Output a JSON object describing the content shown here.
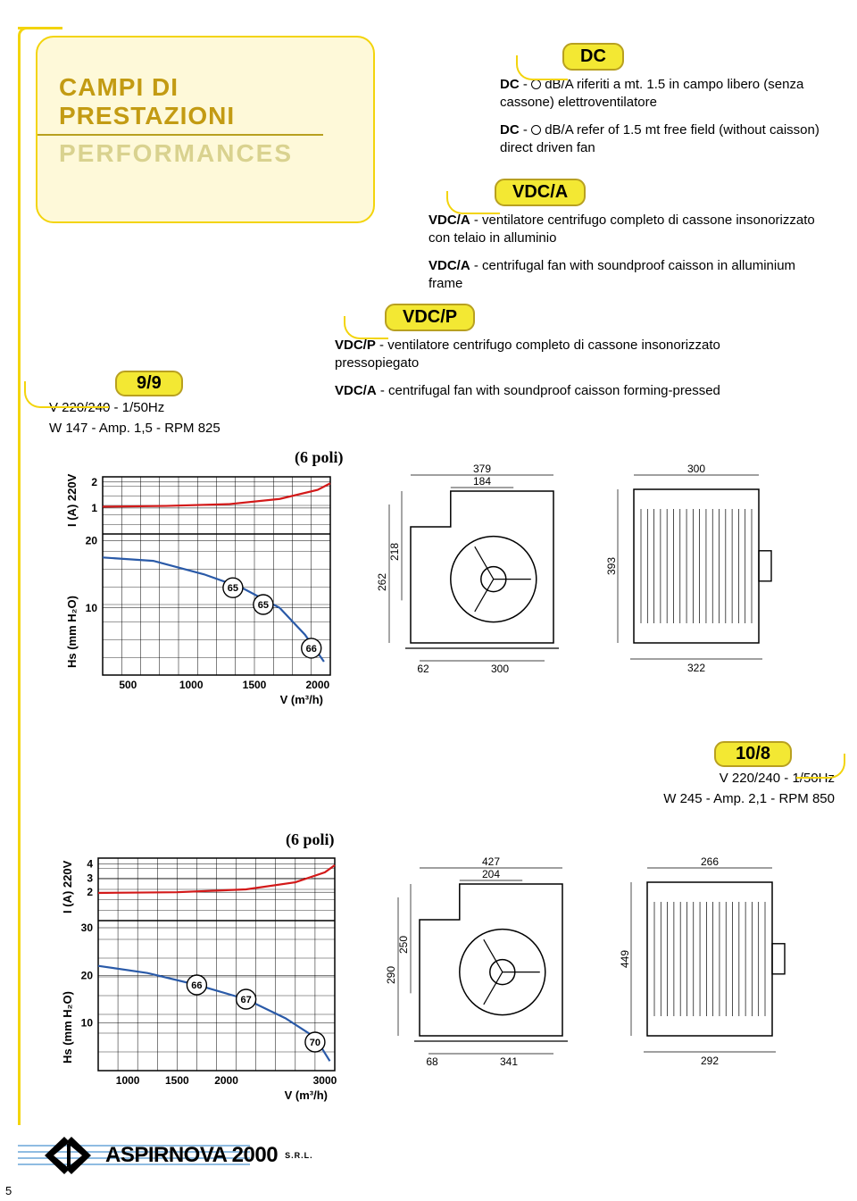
{
  "header": {
    "title_it": "CAMPI DI PRESTAZIONI",
    "title_en": "PERFORMANCES"
  },
  "definitions": {
    "dc": {
      "tag": "DC",
      "line1_code": "DC",
      "line1_rest": "dB/A riferiti a mt. 1.5 in campo libero (senza cassone) elettroventilatore",
      "line2_code": "DC",
      "line2_rest": "dB/A refer of 1.5 mt free field (without caisson) direct driven fan"
    },
    "vdca": {
      "tag": "VDC/A",
      "line1_code": "VDC/A",
      "line1_rest": "ventilatore centrifugo completo di cassone insonorizzato con telaio in alluminio",
      "line2_code": "VDC/A",
      "line2_rest": "centrifugal fan with soundproof caisson in alluminium frame"
    },
    "vdcp": {
      "tag": "VDC/P",
      "line1_code": "VDC/P",
      "line1_rest": "ventilatore centrifugo completo di cassone insonorizzato pressopiegato",
      "line2_code": "VDC/A",
      "line2_rest": "centrifugal fan with soundproof caisson forming-pressed"
    }
  },
  "models": {
    "m99": {
      "tag": "9/9",
      "spec1": "V 220/240 - 1/50Hz",
      "spec2": "W 147 - Amp. 1,5 - RPM 825",
      "poli": "(6 poli)"
    },
    "m108": {
      "tag": "10/8",
      "spec1": "V 220/240 - 1/50Hz",
      "spec2": "W 245 - Amp. 2,1 - RPM 850",
      "poli": "(6 poli)"
    }
  },
  "chart99": {
    "x_ticks": [
      "500",
      "1000",
      "1500",
      "2000"
    ],
    "x_range": [
      300,
      2100
    ],
    "top_y_ticks": [
      "1",
      "2"
    ],
    "bot_y_ticks": [
      "10",
      "20"
    ],
    "ylabel_top": "I (A) 220V",
    "ylabel_bot": "Hs (mm H₂O)",
    "xlabel": "V (m³/h)",
    "red_curve": [
      [
        300,
        1.05
      ],
      [
        800,
        1.08
      ],
      [
        1300,
        1.15
      ],
      [
        1700,
        1.35
      ],
      [
        2000,
        1.7
      ],
      [
        2100,
        1.95
      ]
    ],
    "blue_curve": [
      [
        300,
        17.5
      ],
      [
        700,
        17
      ],
      [
        1100,
        15
      ],
      [
        1400,
        13
      ],
      [
        1700,
        10
      ],
      [
        1900,
        6
      ],
      [
        2050,
        2
      ]
    ],
    "markers": [
      {
        "x": 1330,
        "y": 13,
        "t": "65"
      },
      {
        "x": 1570,
        "y": 10.5,
        "t": "65"
      },
      {
        "x": 1950,
        "y": 4,
        "t": "66"
      }
    ]
  },
  "chart108": {
    "x_ticks": [
      "1000",
      "1500",
      "2000",
      "3000"
    ],
    "x_range": [
      700,
      3100
    ],
    "top_y_ticks": [
      "2",
      "3",
      "4"
    ],
    "bot_y_ticks": [
      "10",
      "20",
      "30"
    ],
    "ylabel_top": "I (A) 220V",
    "ylabel_bot": "Hs (mm H₂O)",
    "xlabel": "V (m³/h)",
    "red_curve": [
      [
        700,
        1.95
      ],
      [
        1500,
        2.0
      ],
      [
        2200,
        2.2
      ],
      [
        2700,
        2.7
      ],
      [
        3000,
        3.4
      ],
      [
        3100,
        3.9
      ]
    ],
    "blue_curve": [
      [
        700,
        22
      ],
      [
        1200,
        20.5
      ],
      [
        1700,
        18
      ],
      [
        2200,
        15
      ],
      [
        2600,
        11
      ],
      [
        2900,
        7
      ],
      [
        3050,
        2
      ]
    ],
    "markers": [
      {
        "x": 1700,
        "y": 18,
        "t": "66"
      },
      {
        "x": 2200,
        "y": 15,
        "t": "67"
      },
      {
        "x": 2900,
        "y": 6,
        "t": "70"
      }
    ]
  },
  "drawing99": {
    "front": {
      "w": "379",
      "wi": "184",
      "h": "262",
      "hi": "218",
      "base_off": "62",
      "base": "300"
    },
    "side": {
      "w": "300",
      "h": "393",
      "base": "322"
    }
  },
  "drawing108": {
    "front": {
      "w": "427",
      "wi": "204",
      "h": "290",
      "hi": "250",
      "base_off": "68",
      "base": "341"
    },
    "side": {
      "w": "266",
      "h": "449",
      "base": "292"
    }
  },
  "footer": {
    "brand": "ASPIRNOVA 2000",
    "suffix": "S.R.L."
  },
  "page_number": "5"
}
